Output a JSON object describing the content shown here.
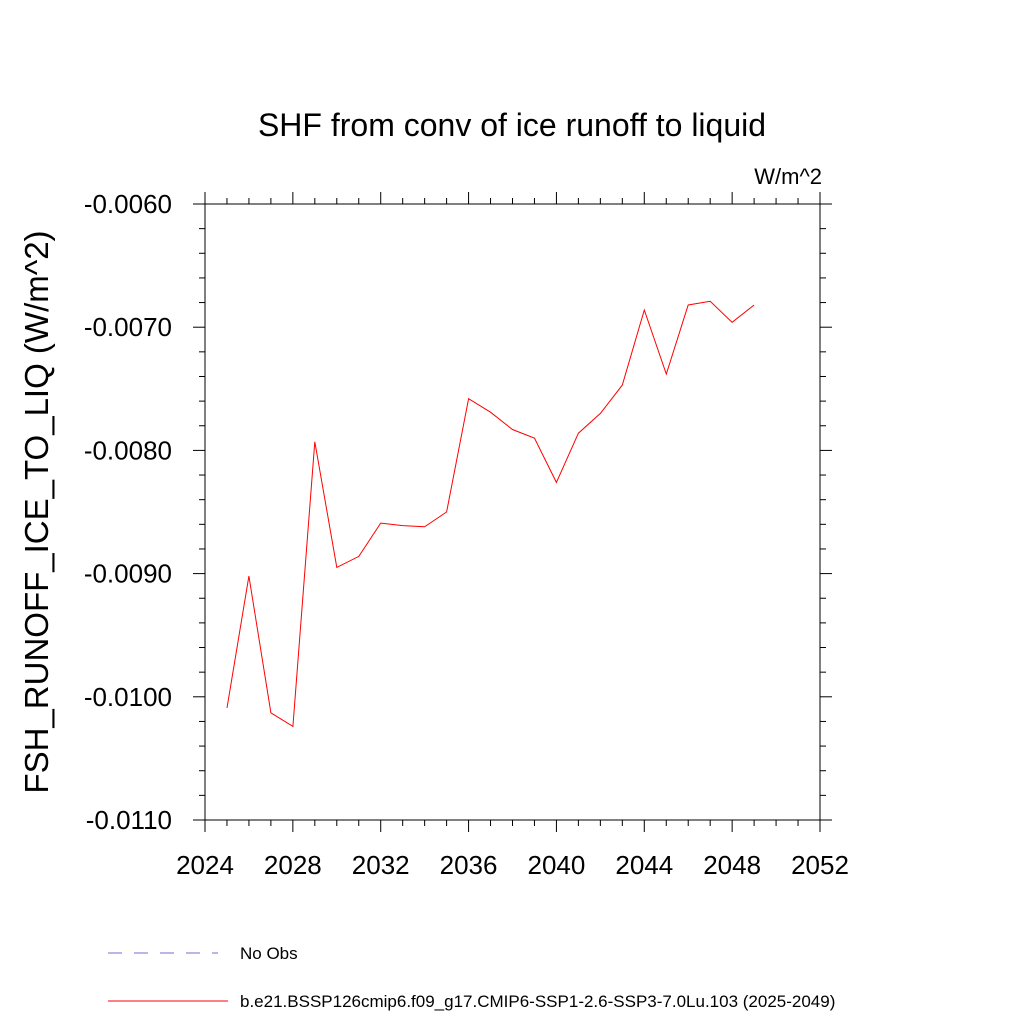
{
  "chart_data": {
    "type": "line",
    "title": "SHF from conv of ice runoff to liquid",
    "units": "W/m^2",
    "ylabel": "FSH_RUNOFF_ICE_TO_LIQ  (W/m^2)",
    "xlabel": "",
    "xlim": [
      2024,
      2052
    ],
    "ylim": [
      -0.011,
      -0.006
    ],
    "xticks": [
      "2024",
      "2028",
      "2032",
      "2036",
      "2040",
      "2044",
      "2048",
      "2052"
    ],
    "yticks": [
      "-0.0060",
      "-0.0070",
      "-0.0080",
      "-0.0090",
      "-0.0100",
      "-0.0110"
    ],
    "grid": false,
    "legend_position": "bottom",
    "series": [
      {
        "name": "b.e21.BSSP126cmip6.f09_g17.CMIP6-SSP1-2.6-SSP3-7.0Lu.103 (2025-2049)",
        "color": "#ff0000",
        "style": "solid",
        "x": [
          2025,
          2026,
          2027,
          2028,
          2029,
          2030,
          2031,
          2032,
          2033,
          2034,
          2035,
          2036,
          2037,
          2038,
          2039,
          2040,
          2041,
          2042,
          2043,
          2044,
          2045,
          2046,
          2047,
          2048,
          2049
        ],
        "y": [
          -0.01009,
          -0.00902,
          -0.01013,
          -0.01024,
          -0.00793,
          -0.00895,
          -0.00886,
          -0.00859,
          -0.00861,
          -0.00862,
          -0.0085,
          -0.00758,
          -0.00769,
          -0.00783,
          -0.0079,
          -0.00826,
          -0.00786,
          -0.0077,
          -0.00747,
          -0.00686,
          -0.00738,
          -0.00682,
          -0.00679,
          -0.00696,
          -0.00682
        ]
      },
      {
        "name": "No Obs",
        "color": "#7b68d6",
        "style": "dashed",
        "x": [],
        "y": []
      }
    ]
  }
}
